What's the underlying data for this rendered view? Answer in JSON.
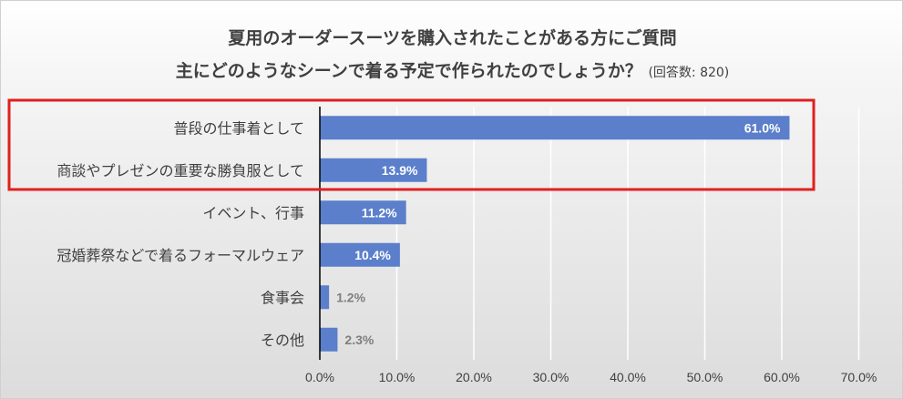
{
  "chart_data": {
    "type": "bar",
    "orientation": "horizontal",
    "title": "夏用のオーダースーツを購入されたことがある方にご質問",
    "subtitle": "主にどのようなシーンで着る予定で作られたのでしょうか？",
    "note": "(回答数: 820)",
    "categories": [
      "普段の仕事着として",
      "商談やプレゼンの重要な勝負服として",
      "イベント、行事",
      "冠婚葬祭などで着るフォーマルウェア",
      "食事会",
      "その他"
    ],
    "values": [
      61.0,
      13.9,
      11.2,
      10.4,
      1.2,
      2.3
    ],
    "data_labels": [
      "61.0%",
      "13.9%",
      "11.2%",
      "10.4%",
      "1.2%",
      "2.3%"
    ],
    "xlim": [
      0,
      70
    ],
    "x_ticks": [
      "0.0%",
      "10.0%",
      "20.0%",
      "30.0%",
      "40.0%",
      "50.0%",
      "60.0%",
      "70.0%"
    ],
    "grid": true,
    "highlight_categories": [
      0,
      1
    ],
    "colors": {
      "bar": "#5b7fcb",
      "highlight_box": "#e0201f",
      "label_inside": "#ffffff",
      "label_outside": "#7f7f7f",
      "text": "#404040",
      "axis": "#000000",
      "grid": "#ffffff"
    }
  }
}
